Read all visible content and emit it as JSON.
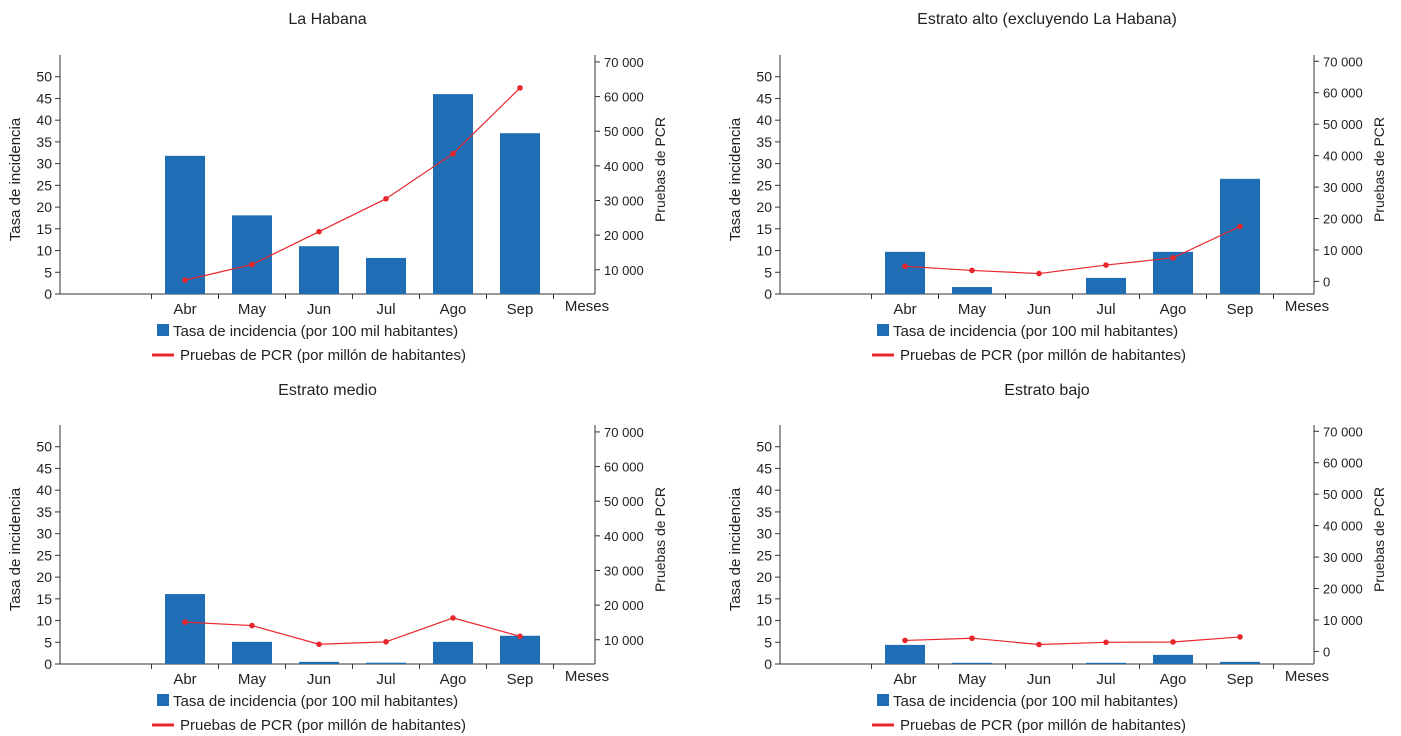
{
  "chart_data": [
    {
      "type": "bar",
      "title": "La Habana",
      "categories": [
        "Abr",
        "May",
        "Jun",
        "Jul",
        "Ago",
        "Sep"
      ],
      "x_axis_end_label": "Meses",
      "ylabel": "Tasa de incidencia",
      "ylabel_right": "Pruebas de PCR",
      "ylim": [
        0,
        55
      ],
      "yticks": [
        0,
        5,
        10,
        15,
        20,
        25,
        30,
        35,
        40,
        45,
        50
      ],
      "ylim_right": [
        3000,
        72000
      ],
      "yticks_right": [
        10000,
        20000,
        30000,
        40000,
        50000,
        60000,
        70000
      ],
      "ytick_labels_right": [
        "10 000",
        "20 000",
        "30 000",
        "40 000",
        "50 000",
        "60 000",
        "70 000"
      ],
      "series": [
        {
          "name": "Tasa de incidencia (por 100 mil habitantes)",
          "kind": "bar",
          "axis": "left",
          "color": "#1f6eb5",
          "values": [
            31.8,
            18.1,
            11.0,
            8.3,
            46.0,
            37.0
          ]
        },
        {
          "name": "Pruebas de PCR (por millón de habitantes)",
          "kind": "line",
          "axis": "right",
          "color": "#e8262c",
          "values": [
            7000,
            11500,
            21000,
            30500,
            43500,
            62500
          ]
        }
      ],
      "legend": "bottom"
    },
    {
      "type": "bar",
      "title": "Estrato alto (excluyendo La Habana)",
      "categories": [
        "Abr",
        "May",
        "Jun",
        "Jul",
        "Ago",
        "Sep"
      ],
      "x_axis_end_label": "Meses",
      "ylabel": "Tasa de incidencia",
      "ylabel_right": "Pruebas de PCR",
      "ylim": [
        0,
        55
      ],
      "yticks": [
        0,
        5,
        10,
        15,
        20,
        25,
        30,
        35,
        40,
        45,
        50
      ],
      "ylim_right": [
        -4000,
        72000
      ],
      "yticks_right": [
        0,
        10000,
        20000,
        30000,
        40000,
        50000,
        60000,
        70000
      ],
      "ytick_labels_right": [
        "0",
        "10 000",
        "20 000",
        "30 000",
        "40 000",
        "50 000",
        "60 000",
        "70 000"
      ],
      "series": [
        {
          "name": "Tasa de incidencia (por 100 mil habitantes)",
          "kind": "bar",
          "axis": "left",
          "color": "#1f6eb5",
          "values": [
            9.7,
            1.6,
            0.0,
            3.7,
            9.7,
            26.5
          ]
        },
        {
          "name": "Pruebas de PCR (por millón de habitantes)",
          "kind": "line",
          "axis": "right",
          "color": "#e8262c",
          "values": [
            4800,
            3500,
            2500,
            5200,
            7500,
            17500
          ]
        }
      ],
      "legend": "bottom"
    },
    {
      "type": "bar",
      "title": "Estrato medio",
      "categories": [
        "Abr",
        "May",
        "Jun",
        "Jul",
        "Ago",
        "Sep"
      ],
      "x_axis_end_label": "Meses",
      "ylabel": "Tasa de incidencia",
      "ylabel_right": "Pruebas de PCR",
      "ylim": [
        0,
        55
      ],
      "yticks": [
        0,
        5,
        10,
        15,
        20,
        25,
        30,
        35,
        40,
        45,
        50
      ],
      "ylim_right": [
        3000,
        72000
      ],
      "yticks_right": [
        10000,
        20000,
        30000,
        40000,
        50000,
        60000,
        70000
      ],
      "ytick_labels_right": [
        "10 000",
        "20 000",
        "30 000",
        "40 000",
        "50 000",
        "60 000",
        "70 000"
      ],
      "series": [
        {
          "name": "Tasa de incidencia (por 100 mil habitantes)",
          "kind": "bar",
          "axis": "left",
          "color": "#1f6eb5",
          "values": [
            16.1,
            5.1,
            0.5,
            0.3,
            5.1,
            6.5
          ]
        },
        {
          "name": "Pruebas de PCR (por millón de habitantes)",
          "kind": "line",
          "axis": "right",
          "color": "#e8262c",
          "values": [
            15100,
            14100,
            8700,
            9400,
            16300,
            11000
          ]
        }
      ],
      "legend": "bottom"
    },
    {
      "type": "bar",
      "title": "Estrato bajo",
      "categories": [
        "Abr",
        "May",
        "Jun",
        "Jul",
        "Ago",
        "Sep"
      ],
      "x_axis_end_label": "Meses",
      "ylabel": "Tasa de incidencia",
      "ylabel_right": "Pruebas de PCR",
      "ylim": [
        0,
        55
      ],
      "yticks": [
        0,
        5,
        10,
        15,
        20,
        25,
        30,
        35,
        40,
        45,
        50
      ],
      "ylim_right": [
        -4000,
        72000
      ],
      "yticks_right": [
        0,
        10000,
        20000,
        30000,
        40000,
        50000,
        60000,
        70000
      ],
      "ytick_labels_right": [
        "0",
        "10 000",
        "20 000",
        "30 000",
        "40 000",
        "50 000",
        "60 000",
        "70 000"
      ],
      "series": [
        {
          "name": "Tasa de incidencia (por 100 mil habitantes)",
          "kind": "bar",
          "axis": "left",
          "color": "#1f6eb5",
          "values": [
            4.4,
            0.2,
            0.0,
            0.2,
            2.1,
            0.5
          ]
        },
        {
          "name": "Pruebas de PCR (por millón de habitantes)",
          "kind": "line",
          "axis": "right",
          "color": "#e8262c",
          "values": [
            3500,
            4200,
            2200,
            2900,
            3000,
            4600
          ]
        }
      ],
      "legend": "bottom"
    }
  ]
}
